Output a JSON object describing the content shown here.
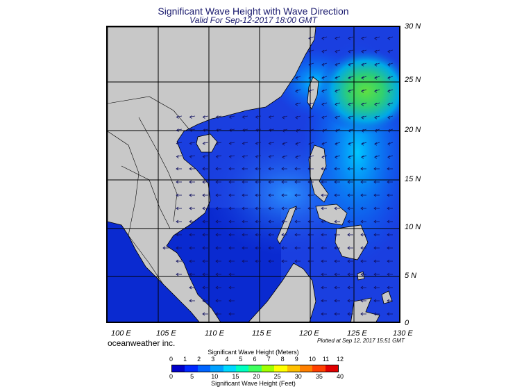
{
  "title": "Significant Wave Height with Wave Direction",
  "subtitle": "Valid For Sep-12-2017 18:00 GMT",
  "brand": "oceanweather inc.",
  "plotted_note": "Plotted at Sep 12, 2017 15:51 GMT",
  "map": {
    "lat_labels": [
      "30 N",
      "25 N",
      "20 N",
      "15 N",
      "10 N",
      "5 N",
      "0"
    ],
    "lon_labels": [
      "100 E",
      "105 E",
      "110 E",
      "115 E",
      "120 E",
      "125 E",
      "130 E"
    ],
    "land_color": "#c8c8c8",
    "ocean_base_color": "#1a3fe0",
    "peak_color": "#50e040"
  },
  "colorbar": {
    "meters_title": "Significant Wave Height (Meters)",
    "feet_title": "Significant Wave Height (Feet)",
    "meters_ticks": [
      "0",
      "1",
      "2",
      "3",
      "4",
      "5",
      "6",
      "7",
      "8",
      "9",
      "10",
      "11",
      "12"
    ],
    "feet_ticks": [
      "0",
      "5",
      "10",
      "15",
      "20",
      "25",
      "30",
      "35",
      "40"
    ],
    "colors": [
      "#0000c8",
      "#0028ff",
      "#0064ff",
      "#00a0ff",
      "#00d8ff",
      "#00ffc0",
      "#40ff60",
      "#a0ff00",
      "#ffff00",
      "#ffc000",
      "#ff8000",
      "#ff4000",
      "#e00000"
    ]
  }
}
